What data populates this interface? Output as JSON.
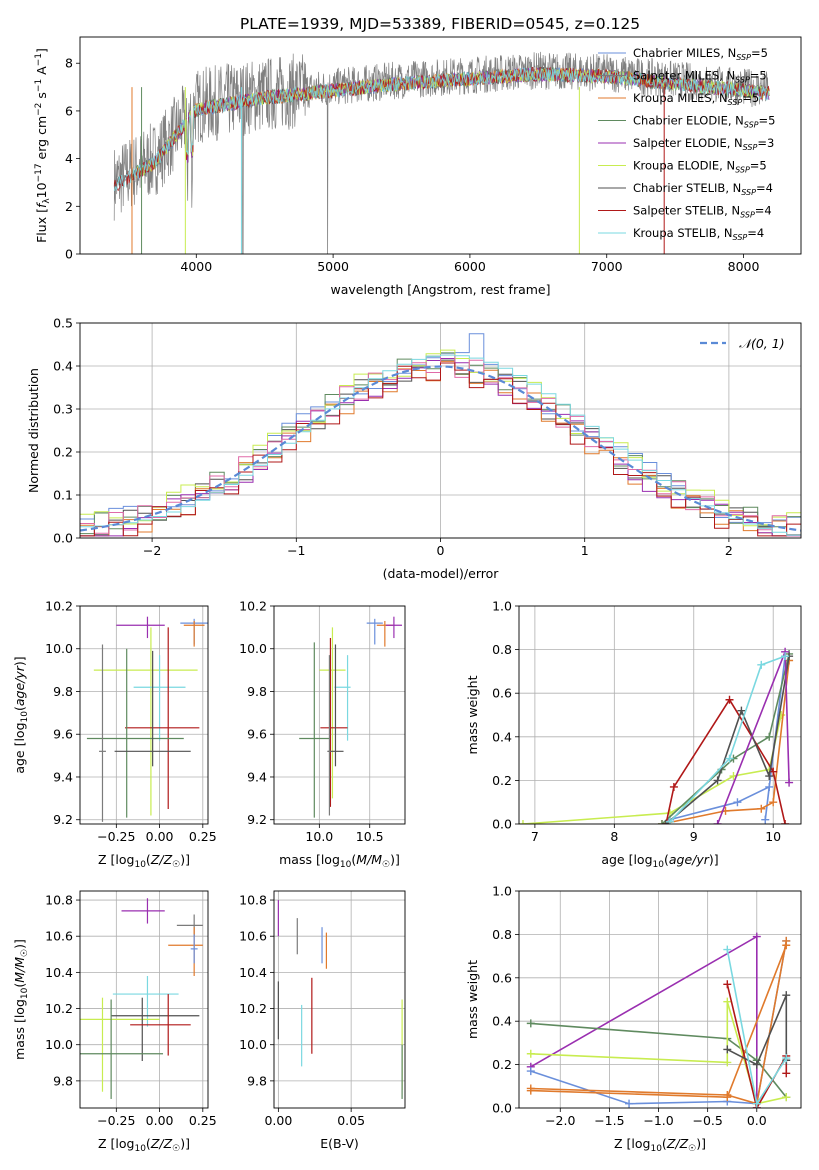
{
  "title": "PLATE=1939, MJD=53389, FIBERID=0545, z=0.125",
  "colors": [
    "#6a8fdb",
    "#7b7b7b",
    "#e07a2c",
    "#5f8a5f",
    "#9a2fb0",
    "#c8ec50",
    "#505050",
    "#b01818",
    "#7ad8e0"
  ],
  "chart_data": [
    {
      "id": "spectrum",
      "type": "line",
      "xlabel": "wavelength [Angstrom, rest frame]",
      "ylabel": "Flux [f_λ 10^-17 erg cm^-2 s^-1 A^-1]",
      "xlim": [
        3150,
        8420
      ],
      "ylim": [
        0,
        9.1
      ],
      "xticks": [
        "4000",
        "5000",
        "6000",
        "7000",
        "8000"
      ],
      "xtick_values": [
        4000,
        5000,
        6000,
        7000,
        8000
      ],
      "yticks": [
        "0",
        "2",
        "4",
        "6",
        "8"
      ],
      "ytick_values": [
        0,
        2,
        4,
        6,
        8
      ],
      "observed_flux_approx": [
        {
          "x": 3400,
          "y": 3.0
        },
        {
          "x": 3700,
          "y": 4.0
        },
        {
          "x": 4000,
          "y": 6.2
        },
        {
          "x": 4500,
          "y": 6.7
        },
        {
          "x": 5000,
          "y": 7.0
        },
        {
          "x": 5500,
          "y": 7.3
        },
        {
          "x": 6000,
          "y": 7.5
        },
        {
          "x": 6500,
          "y": 7.7
        },
        {
          "x": 7000,
          "y": 7.6
        },
        {
          "x": 7500,
          "y": 7.3
        },
        {
          "x": 8000,
          "y": 7.0
        },
        {
          "x": 8180,
          "y": 6.9
        }
      ],
      "legend": [
        {
          "label": "Chabrier MILES, N",
          "sub": "SSP",
          "suffix": "=5"
        },
        {
          "label": "Salpeter MILES, N",
          "sub": "SSP",
          "suffix": "=5"
        },
        {
          "label": "Kroupa MILES, N",
          "sub": "SSP",
          "suffix": "=5"
        },
        {
          "label": "Chabrier ELODIE, N",
          "sub": "SSP",
          "suffix": "=5"
        },
        {
          "label": "Salpeter ELODIE, N",
          "sub": "SSP",
          "suffix": "=3"
        },
        {
          "label": "Kroupa ELODIE, N",
          "sub": "SSP",
          "suffix": "=5"
        },
        {
          "label": "Chabrier STELIB, N",
          "sub": "SSP",
          "suffix": "=4"
        },
        {
          "label": "Salpeter STELIB, N",
          "sub": "SSP",
          "suffix": "=4"
        },
        {
          "label": "Kroupa STELIB, N",
          "sub": "SSP",
          "suffix": "=4"
        }
      ]
    },
    {
      "id": "residuals",
      "type": "histogram",
      "xlabel": "(data-model)/error",
      "ylabel": "Normed distribution",
      "xlim": [
        -2.5,
        2.5
      ],
      "ylim": [
        0,
        0.5
      ],
      "xticks": [
        "−2",
        "−1",
        "0",
        "1",
        "2"
      ],
      "xtick_values": [
        -2,
        -1,
        0,
        1,
        2
      ],
      "yticks": [
        "0.0",
        "0.1",
        "0.2",
        "0.3",
        "0.4",
        "0.5"
      ],
      "ytick_values": [
        0,
        0.1,
        0.2,
        0.3,
        0.4,
        0.5
      ],
      "legend": [
        "𝒩(0, 1)"
      ],
      "reference": {
        "name": "𝒩(0, 1)",
        "mean": 0,
        "sigma": 1
      },
      "bins_start": -2.5,
      "bin_width": 0.1,
      "series_spread": [
        0.0,
        0.012,
        -0.01,
        0.008,
        -0.006,
        0.014,
        0.004,
        -0.012,
        0.01
      ]
    },
    {
      "id": "age_vs_Z",
      "type": "errorbar",
      "xlabel": "Z [log10(Z/Z☉)]",
      "ylabel": "age [log10(age/yr)]",
      "xlim": [
        -0.46,
        0.28
      ],
      "ylim": [
        9.18,
        10.2
      ],
      "xticks": [
        "−0.25",
        "0.00",
        "0.25"
      ],
      "xtick_values": [
        -0.25,
        0,
        0.25
      ],
      "yticks": [
        "9.2",
        "9.4",
        "9.6",
        "9.8",
        "10.0",
        "10.2"
      ],
      "ytick_values": [
        9.2,
        9.4,
        9.6,
        9.8,
        10,
        10.2
      ],
      "points": [
        {
          "x": 0.2,
          "y": 10.12,
          "xerr": [
            0.08,
            0.08
          ],
          "yerr": [
            0.1,
            0.02
          ],
          "c": 0
        },
        {
          "x": 0.2,
          "y": 10.11,
          "xerr": [
            0.06,
            0.06
          ],
          "yerr": [
            0.1,
            0.02
          ],
          "c": 2
        },
        {
          "x": -0.07,
          "y": 10.11,
          "xerr": [
            0.18,
            0.1
          ],
          "yerr": [
            0.06,
            0.04
          ],
          "c": 4
        },
        {
          "x": -0.05,
          "y": 9.9,
          "xerr": [
            0.33,
            0.27
          ],
          "yerr": [
            0.68,
            0.2
          ],
          "c": 5
        },
        {
          "x": 0.0,
          "y": 9.82,
          "xerr": [
            0.15,
            0.15
          ],
          "yerr": [
            0.25,
            0.15
          ],
          "c": 8
        },
        {
          "x": 0.05,
          "y": 9.63,
          "xerr": [
            0.25,
            0.18
          ],
          "yerr": [
            0.38,
            0.47
          ],
          "c": 7
        },
        {
          "x": -0.19,
          "y": 9.58,
          "xerr": [
            0.23,
            0.33
          ],
          "yerr": [
            0.37,
            0.42
          ],
          "c": 3
        },
        {
          "x": -0.04,
          "y": 9.52,
          "xerr": [
            0.22,
            0.22
          ],
          "yerr": [
            0.07,
            0.47
          ],
          "c": 6
        },
        {
          "x": -0.33,
          "y": 9.52,
          "xerr": [
            0.02,
            0.02
          ],
          "yerr": [
            0.33,
            0.5
          ],
          "c": 1
        }
      ]
    },
    {
      "id": "age_vs_mass",
      "type": "errorbar",
      "xlabel": "mass [log10(M/M☉)]",
      "ylabel": "",
      "xlim": [
        9.55,
        10.85
      ],
      "ylim": [
        9.18,
        10.2
      ],
      "xticks": [
        "10.0",
        "10.5"
      ],
      "xtick_values": [
        10,
        10.5
      ],
      "yticks": [
        "9.2",
        "9.4",
        "9.6",
        "9.8",
        "10.0",
        "10.2"
      ],
      "ytick_values": [
        9.2,
        9.4,
        9.6,
        9.8,
        10,
        10.2
      ],
      "points": [
        {
          "x": 10.55,
          "y": 10.12,
          "xerr": [
            0.08,
            0.08
          ],
          "yerr": [
            0.1,
            0.02
          ],
          "c": 0
        },
        {
          "x": 10.65,
          "y": 10.11,
          "xerr": [
            0.08,
            0.08
          ],
          "yerr": [
            0.1,
            0.02
          ],
          "c": 2
        },
        {
          "x": 10.74,
          "y": 10.11,
          "xerr": [
            0.08,
            0.08
          ],
          "yerr": [
            0.06,
            0.04
          ],
          "c": 4
        },
        {
          "x": 10.13,
          "y": 9.9,
          "xerr": [
            0.13,
            0.13
          ],
          "yerr": [
            0.6,
            0.2
          ],
          "c": 5
        },
        {
          "x": 10.28,
          "y": 9.82,
          "xerr": [
            0.13,
            0.03
          ],
          "yerr": [
            0.25,
            0.15
          ],
          "c": 8
        },
        {
          "x": 10.11,
          "y": 9.63,
          "xerr": [
            0.1,
            0.17
          ],
          "yerr": [
            0.37,
            0.42
          ],
          "c": 7
        },
        {
          "x": 9.95,
          "y": 9.58,
          "xerr": [
            0.15,
            0.15
          ],
          "yerr": [
            0.37,
            0.45
          ],
          "c": 3
        },
        {
          "x": 10.16,
          "y": 9.52,
          "xerr": [
            0.08,
            0.08
          ],
          "yerr": [
            0.07,
            0.5
          ],
          "c": 6
        },
        {
          "x": 10.1,
          "y": 9.52,
          "xerr": [
            0.01,
            0.01
          ],
          "yerr": [
            0.3,
            0.45
          ],
          "c": 1
        }
      ]
    },
    {
      "id": "weight_vs_age",
      "type": "line",
      "xlabel": "age [log10(age/yr)]",
      "ylabel": "mass weight",
      "xlim": [
        6.8,
        10.35
      ],
      "ylim": [
        0,
        1.0
      ],
      "xticks": [
        "7",
        "8",
        "9",
        "10"
      ],
      "xtick_values": [
        7,
        8,
        9,
        10
      ],
      "yticks": [
        "0.0",
        "0.2",
        "0.4",
        "0.6",
        "0.8",
        "1.0"
      ],
      "ytick_values": [
        0,
        0.2,
        0.4,
        0.6,
        0.8,
        1.0
      ],
      "series": [
        {
          "c": 5,
          "x": [
            6.85,
            8.7,
            9.5,
            9.95,
            10.1
          ],
          "y": [
            0.0,
            0.05,
            0.22,
            0.25,
            0.5
          ]
        },
        {
          "c": 0,
          "x": [
            8.7,
            9.55,
            9.95,
            9.9,
            10.15
          ],
          "y": [
            0.02,
            0.1,
            0.17,
            0.02,
            0.77
          ]
        },
        {
          "c": 2,
          "x": [
            8.6,
            9.4,
            9.85,
            10.0,
            10.2
          ],
          "y": [
            0.0,
            0.06,
            0.07,
            0.1,
            0.75
          ]
        },
        {
          "c": 3,
          "x": [
            8.6,
            9.35,
            9.5,
            9.95,
            10.2
          ],
          "y": [
            0.0,
            0.25,
            0.3,
            0.4,
            0.78
          ]
        },
        {
          "c": 7,
          "x": [
            8.65,
            8.75,
            9.45,
            10.0,
            10.15
          ],
          "y": [
            0.0,
            0.17,
            0.57,
            0.24,
            0.0
          ]
        },
        {
          "c": 6,
          "x": [
            8.65,
            9.3,
            9.6,
            9.95,
            10.2
          ],
          "y": [
            0.0,
            0.2,
            0.52,
            0.22,
            0.77
          ]
        },
        {
          "c": 4,
          "x": [
            9.3,
            10.15,
            10.2
          ],
          "y": [
            0.0,
            0.79,
            0.19
          ]
        },
        {
          "c": 8,
          "x": [
            8.7,
            9.45,
            9.85,
            10.15
          ],
          "y": [
            0.01,
            0.3,
            0.73,
            0.77
          ]
        }
      ]
    },
    {
      "id": "mass_vs_Z",
      "type": "errorbar",
      "xlabel": "Z [log10(Z/Z☉)]",
      "ylabel": "mass [log10(M/M☉)]",
      "xlim": [
        -0.46,
        0.28
      ],
      "ylim": [
        9.65,
        10.85
      ],
      "xticks": [
        "−0.25",
        "0.00",
        "0.25"
      ],
      "xtick_values": [
        -0.25,
        0,
        0.25
      ],
      "yticks": [
        "9.8",
        "10.0",
        "10.2",
        "10.4",
        "10.6",
        "10.8"
      ],
      "ytick_values": [
        9.8,
        10,
        10.2,
        10.4,
        10.6,
        10.8
      ],
      "points": [
        {
          "x": -0.07,
          "y": 10.74,
          "xerr": [
            0.15,
            0.1
          ],
          "yerr": [
            0.07,
            0.07
          ],
          "c": 4
        },
        {
          "x": 0.2,
          "y": 10.66,
          "xerr": [
            0.1,
            0.05
          ],
          "yerr": [
            0.06,
            0.06
          ],
          "c": 1
        },
        {
          "x": 0.2,
          "y": 10.55,
          "xerr": [
            0.15,
            0.05
          ],
          "yerr": [
            0.17,
            0.1
          ],
          "c": 2
        },
        {
          "x": 0.2,
          "y": 10.53,
          "xerr": [
            0.02,
            0.02
          ],
          "yerr": [
            0.08,
            0.08
          ],
          "c": 0
        },
        {
          "x": -0.07,
          "y": 10.28,
          "xerr": [
            0.2,
            0.18
          ],
          "yerr": [
            0.18,
            0.1
          ],
          "c": 8
        },
        {
          "x": -0.33,
          "y": 10.14,
          "xerr": [
            0.13,
            0.33
          ],
          "yerr": [
            0.4,
            0.12
          ],
          "c": 5
        },
        {
          "x": -0.1,
          "y": 10.16,
          "xerr": [
            0.18,
            0.33
          ],
          "yerr": [
            0.25,
            0.1
          ],
          "c": 6
        },
        {
          "x": 0.05,
          "y": 10.11,
          "xerr": [
            0.22,
            0.13
          ],
          "yerr": [
            0.17,
            0.17
          ],
          "c": 7
        },
        {
          "x": -0.28,
          "y": 9.95,
          "xerr": [
            0.2,
            0.3
          ],
          "yerr": [
            0.25,
            0.3
          ],
          "c": 3
        }
      ]
    },
    {
      "id": "mass_vs_EBV",
      "type": "errorbar",
      "xlabel": "E(B-V)",
      "ylabel": "",
      "xlim": [
        -0.003,
        0.087
      ],
      "ylim": [
        9.65,
        10.85
      ],
      "xticks": [
        "0.00",
        "0.05"
      ],
      "xtick_values": [
        0,
        0.05
      ],
      "yticks": [
        "9.8",
        "10.0",
        "10.2",
        "10.4",
        "10.6",
        "10.8"
      ],
      "ytick_values": [
        9.8,
        10,
        10.2,
        10.4,
        10.6,
        10.8
      ],
      "points": [
        {
          "x": 0.0,
          "y": 10.7,
          "yerr": [
            0.1,
            0.1
          ],
          "c": 4
        },
        {
          "x": 0.013,
          "y": 10.6,
          "yerr": [
            0.1,
            0.1
          ],
          "c": 1
        },
        {
          "x": 0.033,
          "y": 10.52,
          "yerr": [
            0.1,
            0.1
          ],
          "c": 2
        },
        {
          "x": 0.03,
          "y": 10.55,
          "yerr": [
            0.1,
            0.1
          ],
          "c": 0
        },
        {
          "x": 0.016,
          "y": 10.05,
          "yerr": [
            0.17,
            0.17
          ],
          "c": 8
        },
        {
          "x": 0.085,
          "y": 10.1,
          "yerr": [
            0.35,
            0.15
          ],
          "c": 5
        },
        {
          "x": 0.0,
          "y": 10.2,
          "yerr": [
            0.17,
            0.15
          ],
          "c": 6
        },
        {
          "x": 0.023,
          "y": 10.15,
          "yerr": [
            0.2,
            0.22
          ],
          "c": 7
        },
        {
          "x": 0.085,
          "y": 9.85,
          "yerr": [
            0.15,
            0.15
          ],
          "c": 3
        }
      ]
    },
    {
      "id": "weight_vs_Z",
      "type": "line",
      "xlabel": "Z [log10(Z/Z☉)]",
      "ylabel": "mass weight",
      "xlim": [
        -2.42,
        0.45
      ],
      "ylim": [
        0,
        1.0
      ],
      "xticks": [
        "−2.0",
        "−1.5",
        "−1.0",
        "−0.5",
        "0.0"
      ],
      "xtick_values": [
        -2,
        -1.5,
        -1,
        -0.5,
        0
      ],
      "yticks": [
        "0.0",
        "0.2",
        "0.4",
        "0.6",
        "0.8",
        "1.0"
      ],
      "ytick_values": [
        0,
        0.2,
        0.4,
        0.6,
        0.8,
        1.0
      ],
      "series": [
        {
          "c": 4,
          "x": [
            -2.3,
            0.0,
            0.0
          ],
          "y": [
            0.19,
            0.79,
            0.0
          ]
        },
        {
          "c": 3,
          "x": [
            -2.3,
            -0.3,
            0.0,
            0.3
          ],
          "y": [
            0.39,
            0.32,
            0.22,
            0.05
          ]
        },
        {
          "c": 5,
          "x": [
            -2.3,
            -0.3,
            -0.3,
            0.0,
            0.3
          ],
          "y": [
            0.25,
            0.21,
            0.49,
            0.02,
            0.05
          ]
        },
        {
          "c": 0,
          "x": [
            -2.3,
            -1.3,
            -0.3,
            0.0,
            0.3
          ],
          "y": [
            0.17,
            0.02,
            0.03,
            0.02,
            0.77
          ]
        },
        {
          "c": 2,
          "x": [
            -2.3,
            -0.3,
            0.0,
            0.3
          ],
          "y": [
            0.09,
            0.06,
            0.02,
            0.77
          ]
        },
        {
          "c": 2,
          "x": [
            -2.3,
            -0.3,
            0.3
          ],
          "y": [
            0.08,
            0.05,
            0.75
          ]
        },
        {
          "c": 7,
          "x": [
            -0.3,
            0.0,
            0.3,
            0.3
          ],
          "y": [
            0.57,
            0.0,
            0.24,
            0.16
          ]
        },
        {
          "c": 6,
          "x": [
            -0.3,
            0.0,
            0.3,
            0.3
          ],
          "y": [
            0.27,
            0.2,
            0.52,
            0.22
          ]
        },
        {
          "c": 8,
          "x": [
            -0.3,
            0.0,
            0.3
          ],
          "y": [
            0.73,
            0.02,
            0.23
          ]
        }
      ]
    }
  ]
}
